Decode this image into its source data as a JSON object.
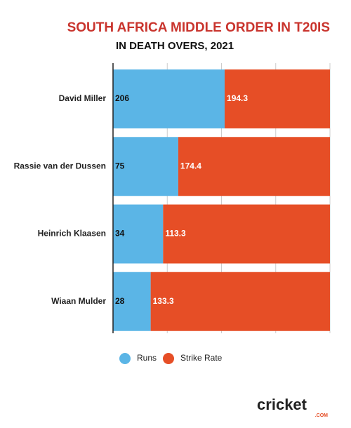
{
  "chart_data": {
    "type": "bar",
    "orientation": "horizontal",
    "stacked": "percent",
    "title": "SOUTH AFRICA MIDDLE ORDER IN T20IS",
    "subtitle": "IN DEATH OVERS, 2021",
    "categories": [
      "David Miller",
      "Rassie van der Dussen",
      "Heinrich Klaasen",
      "Wiaan Mulder"
    ],
    "series": [
      {
        "name": "Runs",
        "color": "#5bb5e6",
        "values": [
          206,
          75,
          34,
          28
        ]
      },
      {
        "name": "Strike Rate",
        "color": "#e64e26",
        "values": [
          194.3,
          174.4,
          113.3,
          133.3
        ]
      }
    ],
    "xlim": [
      0,
      100
    ],
    "xticks": [
      0,
      25,
      50,
      75,
      100
    ],
    "grid": true,
    "legend": "bottom",
    "logo": {
      "text": "cricket",
      "suffix": ".COM"
    }
  }
}
